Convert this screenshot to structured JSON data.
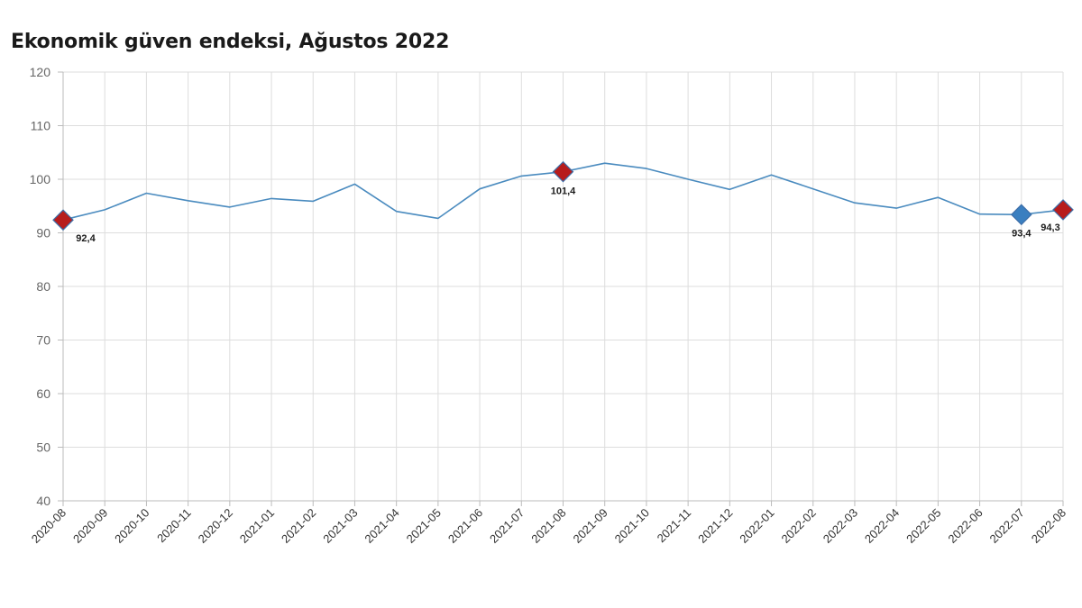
{
  "chart_data": {
    "type": "line",
    "title": "Ekonomik güven endeksi, Ağustos 2022",
    "xlabel": "",
    "ylabel": "",
    "ylim": [
      40,
      120
    ],
    "yticks": [
      40,
      50,
      60,
      70,
      80,
      90,
      100,
      110,
      120
    ],
    "grid": true,
    "categories": [
      "2020-08",
      "2020-09",
      "2020-10",
      "2020-11",
      "2020-12",
      "2021-01",
      "2021-02",
      "2021-03",
      "2021-04",
      "2021-05",
      "2021-06",
      "2021-07",
      "2021-08",
      "2021-09",
      "2021-10",
      "2021-11",
      "2021-12",
      "2022-01",
      "2022-02",
      "2022-03",
      "2022-04",
      "2022-05",
      "2022-06",
      "2022-07",
      "2022-08"
    ],
    "series": [
      {
        "name": "Ekonomik güven endeksi",
        "color": "#4a8bbf",
        "values": [
          92.4,
          94.3,
          97.4,
          96.0,
          94.8,
          96.4,
          95.9,
          99.1,
          94.0,
          92.7,
          98.2,
          100.6,
          101.4,
          103.0,
          102.0,
          100.0,
          98.1,
          100.8,
          98.2,
          95.6,
          94.6,
          96.6,
          93.5,
          93.4,
          94.3
        ]
      }
    ],
    "highlights": [
      {
        "index": 0,
        "label": "92,4",
        "color": "#b71c1c"
      },
      {
        "index": 12,
        "label": "101,4",
        "color": "#b71c1c"
      },
      {
        "index": 23,
        "label": "93,4",
        "color": "#3a7fc0"
      },
      {
        "index": 24,
        "label": "94,3",
        "color": "#b71c1c"
      }
    ]
  }
}
